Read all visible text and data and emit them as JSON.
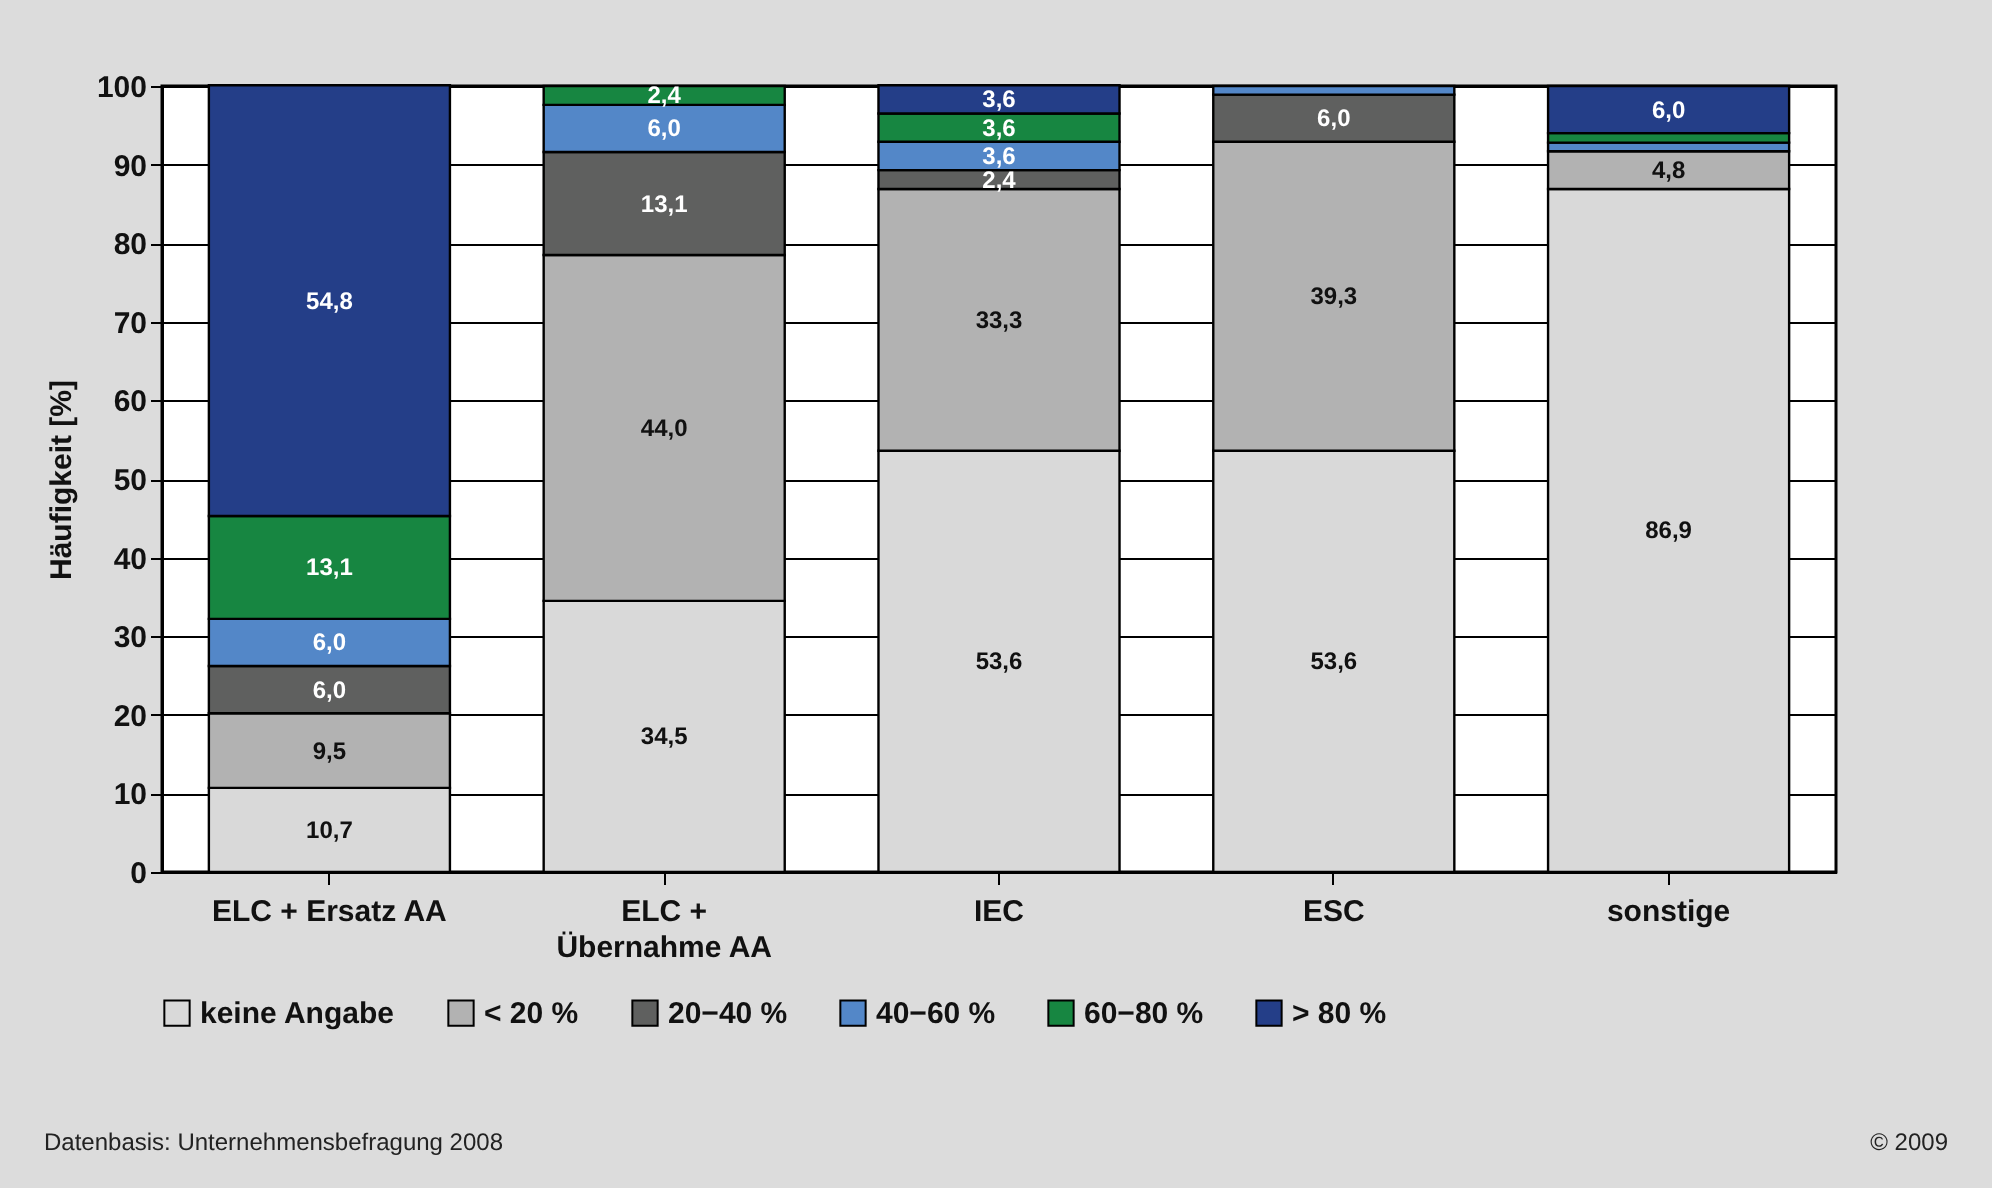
{
  "chart_data": {
    "type": "bar",
    "stacked": true,
    "ylabel": "Häufigkeit [%]",
    "categories": [
      "ELC + Ersatz AA",
      "ELC +\nÜbernahme AA",
      "IEC",
      "ESC",
      "sonstige"
    ],
    "series": [
      {
        "name": "keine Angabe",
        "color": "#d9d9d9",
        "values": [
          10.7,
          34.5,
          53.6,
          53.6,
          86.9
        ],
        "value_labels": [
          "10,7",
          "34,5",
          "53,6",
          "53,6",
          "86,9"
        ]
      },
      {
        "name": "< 20 %",
        "color": "#b2b2b2",
        "values": [
          9.5,
          44.0,
          33.3,
          39.3,
          4.8
        ],
        "value_labels": [
          "9,5",
          "44,0",
          "33,3",
          "39,3",
          "4,8"
        ]
      },
      {
        "name": "20−40 %",
        "color": "#5f605f",
        "values": [
          6.0,
          13.1,
          2.4,
          6.0,
          null
        ],
        "value_labels": [
          "6,0",
          "13,1",
          "2,4",
          "6,0",
          null
        ]
      },
      {
        "name": "40−60 %",
        "color": "#5387c8",
        "values": [
          6.0,
          6.0,
          3.6,
          1.1,
          1.1
        ],
        "value_labels": [
          "6,0",
          "6,0",
          "3,6",
          null,
          null
        ]
      },
      {
        "name": "60−80 %",
        "color": "#178641",
        "values": [
          13.1,
          2.4,
          3.6,
          null,
          1.2
        ],
        "value_labels": [
          "13,1",
          "2,4",
          "3,6",
          null,
          null
        ]
      },
      {
        "name": "> 80 %",
        "color": "#243e88",
        "values": [
          54.8,
          null,
          3.6,
          null,
          6.0
        ],
        "value_labels": [
          "54,8",
          null,
          "3,6",
          null,
          "6,0"
        ]
      }
    ],
    "ylim": [
      0,
      100
    ],
    "yticks": [
      0,
      10,
      20,
      30,
      40,
      50,
      60,
      70,
      80,
      90,
      100
    ],
    "grid": "y",
    "legend": "bottom",
    "annotations": [
      "Datenbasis: Unternehmensbefragung 2008",
      "© 2009"
    ]
  }
}
